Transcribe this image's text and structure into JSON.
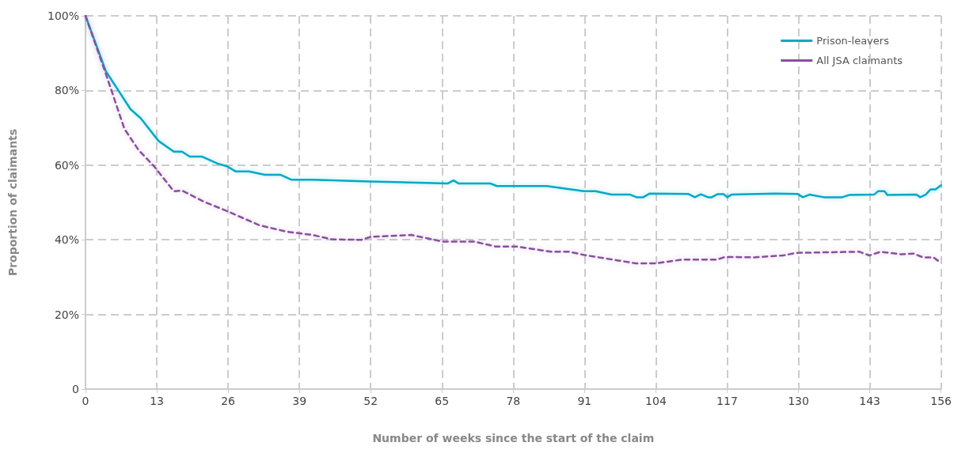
{
  "chart_data": {
    "type": "line",
    "xlabel": "Number of weeks since the start of the claim",
    "ylabel": "Proportion of claimants",
    "xlim": [
      0,
      156
    ],
    "xticks": [
      0,
      13,
      26,
      39,
      52,
      65,
      78,
      91,
      104,
      117,
      130,
      143,
      156
    ],
    "ylim": [
      0,
      100
    ],
    "yticks": [
      {
        "value": 0,
        "label": "0"
      },
      {
        "value": 20,
        "label": "20%"
      },
      {
        "value": 40,
        "label": "40%"
      },
      {
        "value": 60,
        "label": "60%"
      },
      {
        "value": 80,
        "label": "80%"
      },
      {
        "value": 100,
        "label": "100%"
      }
    ],
    "grid": true,
    "legend": "top right",
    "marker": "none",
    "series": [
      {
        "name": "Prison-leavers",
        "color": "#00a9c6",
        "line_style": "solid",
        "x": [
          0,
          3.7,
          8.2,
          10.1,
          13.3,
          16.1,
          17.6,
          19,
          21.2,
          24.1,
          25.8,
          27.4,
          29.8,
          32.7,
          35.6,
          37.5,
          41.4,
          52,
          66.1,
          67.1,
          68,
          73.8,
          75,
          84.1,
          90.9,
          93,
          95.9,
          99.3,
          100.5,
          101.7,
          102.9,
          109.9,
          111.1,
          112.2,
          113.5,
          114.2,
          115.2,
          116.4,
          117,
          117.8,
          125.7,
          129.8,
          130.8,
          132,
          134.6,
          138,
          139.2,
          143.8,
          144.5,
          145.7,
          146.2,
          151.5,
          152.2,
          153.2,
          154.1,
          155,
          156
        ],
        "values": [
          100,
          85.2,
          75,
          72.5,
          66.5,
          63.6,
          63.6,
          62.3,
          62.3,
          60.4,
          59.7,
          58.3,
          58.3,
          57.4,
          57.4,
          56.1,
          56.1,
          55.6,
          55.1,
          55.9,
          55.1,
          55.1,
          54.4,
          54.4,
          53,
          53,
          52.1,
          52.1,
          51.4,
          51.4,
          52.4,
          52.3,
          51.4,
          52.2,
          51.4,
          51.4,
          52.2,
          52.2,
          51.4,
          52.1,
          52.4,
          52.3,
          51.4,
          52.1,
          51.4,
          51.4,
          52,
          52.1,
          53,
          53,
          52,
          52.1,
          51.4,
          52.1,
          53.5,
          53.5,
          54.6
        ]
      },
      {
        "name": "All JSA claimants",
        "color": "#8a4f9e",
        "line_style": "dashed",
        "x": [
          0,
          3.7,
          7.1,
          9.7,
          12.5,
          16.1,
          17.6,
          21.6,
          25.8,
          31.7,
          36.6,
          41.4,
          45,
          50.3,
          52,
          59.4,
          65.2,
          70.9,
          74.8,
          78.6,
          84.9,
          88.2,
          91,
          96.9,
          100.3,
          104,
          108.9,
          115.2,
          116.6,
          121.9,
          127.2,
          129.6,
          141.1,
          142.9,
          145,
          148.8,
          151,
          152.7,
          154.6,
          156
        ],
        "values": [
          100,
          84.5,
          69.7,
          64,
          59.7,
          53,
          53.2,
          50.2,
          47.7,
          43.9,
          42.2,
          41.3,
          40.1,
          40,
          40.8,
          41.3,
          39.5,
          39.5,
          38.2,
          38.2,
          36.8,
          36.8,
          35.9,
          34.5,
          33.7,
          33.7,
          34.7,
          34.7,
          35.4,
          35.3,
          35.8,
          36.5,
          36.8,
          35.8,
          36.8,
          36.1,
          36.3,
          35.3,
          35.3,
          33.8
        ]
      }
    ]
  }
}
